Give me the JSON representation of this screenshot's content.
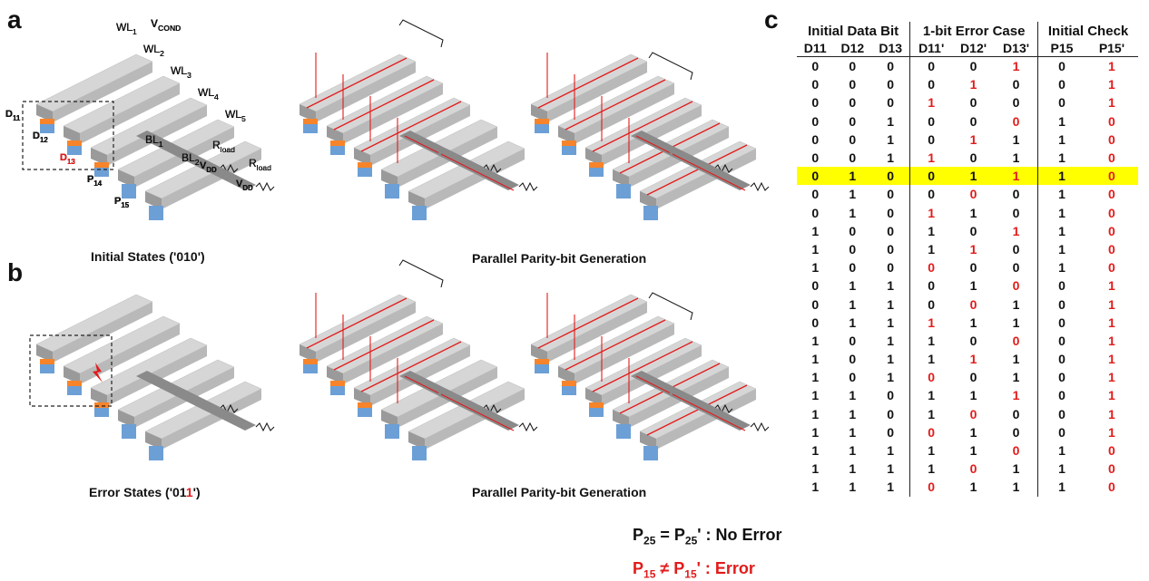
{
  "panels": {
    "a": {
      "letter": "a",
      "left_caption": "Initial States ('010')",
      "right_caption": "Parallel Parity-bit Generation"
    },
    "b": {
      "letter": "b",
      "left_caption_prefix": "Error States ('01",
      "left_caption_red": "1",
      "left_caption_suffix": "')",
      "right_caption": "Parallel Parity-bit Generation"
    },
    "c": {
      "letter": "c"
    }
  },
  "diagram_labels": {
    "wordlines": [
      "WL1",
      "WL2",
      "WL3",
      "WL4",
      "WL5"
    ],
    "cells": [
      "D11",
      "D12",
      "D13",
      "P14",
      "P15"
    ],
    "bitlines": [
      "BL1",
      "BL2"
    ],
    "rload": "Rload",
    "vdd": "VDD",
    "vcond": "VCOND"
  },
  "table": {
    "groups": [
      "Initial Data Bit",
      "1-bit Error Case",
      "Initial Check"
    ],
    "columns": [
      "D11",
      "D12",
      "D13",
      "D11'",
      "D12'",
      "D13'",
      "P15",
      "P15'"
    ],
    "highlight_row": 6,
    "rows": [
      [
        0,
        0,
        0,
        0,
        0,
        1,
        0,
        1
      ],
      [
        0,
        0,
        0,
        0,
        1,
        0,
        0,
        1
      ],
      [
        0,
        0,
        0,
        1,
        0,
        0,
        0,
        1
      ],
      [
        0,
        0,
        1,
        0,
        0,
        0,
        1,
        0
      ],
      [
        0,
        0,
        1,
        0,
        1,
        1,
        1,
        0
      ],
      [
        0,
        0,
        1,
        1,
        0,
        1,
        1,
        0
      ],
      [
        0,
        1,
        0,
        0,
        1,
        1,
        1,
        0
      ],
      [
        0,
        1,
        0,
        0,
        0,
        0,
        1,
        0
      ],
      [
        0,
        1,
        0,
        1,
        1,
        0,
        1,
        0
      ],
      [
        1,
        0,
        0,
        1,
        0,
        1,
        1,
        0
      ],
      [
        1,
        0,
        0,
        1,
        1,
        0,
        1,
        0
      ],
      [
        1,
        0,
        0,
        0,
        0,
        0,
        1,
        0
      ],
      [
        0,
        1,
        1,
        0,
        1,
        0,
        0,
        1
      ],
      [
        0,
        1,
        1,
        0,
        0,
        1,
        0,
        1
      ],
      [
        0,
        1,
        1,
        1,
        1,
        1,
        0,
        1
      ],
      [
        1,
        0,
        1,
        1,
        0,
        0,
        0,
        1
      ],
      [
        1,
        0,
        1,
        1,
        1,
        1,
        0,
        1
      ],
      [
        1,
        0,
        1,
        0,
        0,
        1,
        0,
        1
      ],
      [
        1,
        1,
        0,
        1,
        1,
        1,
        0,
        1
      ],
      [
        1,
        1,
        0,
        1,
        0,
        0,
        0,
        1
      ],
      [
        1,
        1,
        0,
        0,
        1,
        0,
        0,
        1
      ],
      [
        1,
        1,
        1,
        1,
        1,
        0,
        1,
        0
      ],
      [
        1,
        1,
        1,
        1,
        0,
        1,
        1,
        0
      ],
      [
        1,
        1,
        1,
        0,
        1,
        1,
        1,
        0
      ]
    ],
    "red_cells": [
      [
        0,
        5
      ],
      [
        0,
        7
      ],
      [
        1,
        4
      ],
      [
        1,
        7
      ],
      [
        2,
        3
      ],
      [
        2,
        7
      ],
      [
        3,
        5
      ],
      [
        3,
        7
      ],
      [
        4,
        4
      ],
      [
        4,
        7
      ],
      [
        5,
        3
      ],
      [
        5,
        7
      ],
      [
        6,
        5
      ],
      [
        6,
        7
      ],
      [
        7,
        4
      ],
      [
        7,
        7
      ],
      [
        8,
        3
      ],
      [
        8,
        7
      ],
      [
        9,
        5
      ],
      [
        9,
        7
      ],
      [
        10,
        4
      ],
      [
        10,
        7
      ],
      [
        11,
        3
      ],
      [
        11,
        7
      ],
      [
        12,
        5
      ],
      [
        12,
        7
      ],
      [
        13,
        4
      ],
      [
        13,
        7
      ],
      [
        14,
        3
      ],
      [
        14,
        7
      ],
      [
        15,
        5
      ],
      [
        15,
        7
      ],
      [
        16,
        4
      ],
      [
        16,
        7
      ],
      [
        17,
        3
      ],
      [
        17,
        7
      ],
      [
        18,
        5
      ],
      [
        18,
        7
      ],
      [
        19,
        4
      ],
      [
        19,
        7
      ],
      [
        20,
        3
      ],
      [
        20,
        7
      ],
      [
        21,
        5
      ],
      [
        21,
        7
      ],
      [
        22,
        4
      ],
      [
        22,
        7
      ],
      [
        23,
        3
      ],
      [
        23,
        7
      ]
    ]
  },
  "legend": {
    "no_error": {
      "p": "P",
      "sub1": "25",
      "eq": " = P",
      "sub2": "25",
      "tail": "' : No Error"
    },
    "error": {
      "p": "P",
      "sub1": "15",
      "eq": " ≠ P",
      "sub2": "15",
      "tail": "' : Error"
    }
  },
  "colors": {
    "error_red": "#e21b1b",
    "highlight": "#ffff00",
    "cell_orange": "#f7842a",
    "cell_blue": "#6c9fd6",
    "bar_top": "#d6d6d6",
    "bar_side": "#9a9a9a",
    "bar_front": "#b9b9b9"
  }
}
